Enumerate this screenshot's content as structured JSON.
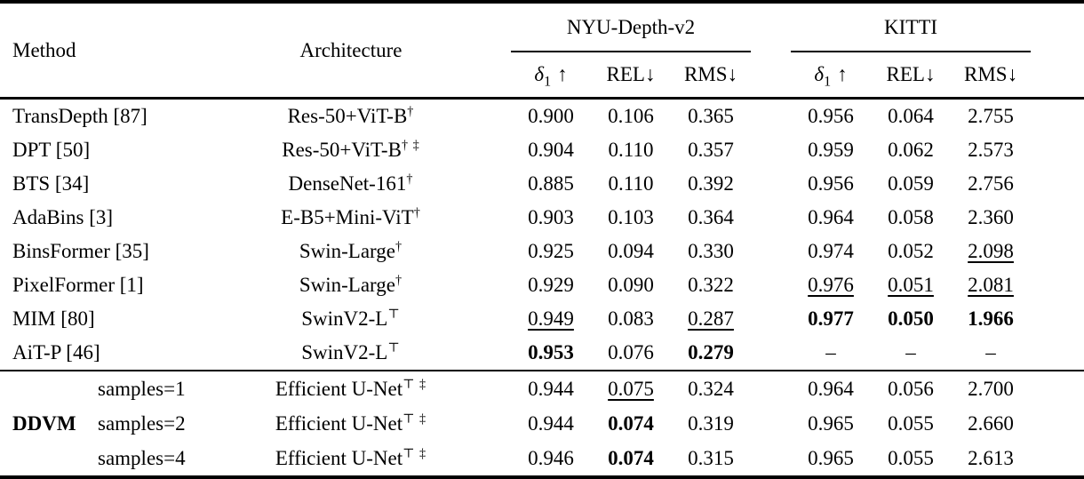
{
  "colors": {
    "text": "#000000",
    "background": "#ffffff",
    "rule": "#000000"
  },
  "header": {
    "method": "Method",
    "architecture": "Architecture",
    "groups": [
      {
        "label": "NYU-Depth-v2"
      },
      {
        "label": "KITTI"
      }
    ],
    "metric_delta_sym": "δ",
    "metric_delta_sub": "1",
    "metric_delta_arrow": "↑",
    "metric_rel": "REL↓",
    "metric_rms": "RMS↓"
  },
  "rows": [
    {
      "method": "TransDepth [87]",
      "arch": "Res-50+ViT-B",
      "sup": "†",
      "m": [
        {
          "t": "0.900",
          "e": ""
        },
        {
          "t": "0.106",
          "e": ""
        },
        {
          "t": "0.365",
          "e": ""
        },
        {
          "t": "0.956",
          "e": ""
        },
        {
          "t": "0.064",
          "e": ""
        },
        {
          "t": "2.755",
          "e": ""
        }
      ]
    },
    {
      "method": "DPT [50]",
      "arch": "Res-50+ViT-B",
      "sup": "† ‡",
      "m": [
        {
          "t": "0.904",
          "e": ""
        },
        {
          "t": "0.110",
          "e": ""
        },
        {
          "t": "0.357",
          "e": ""
        },
        {
          "t": "0.959",
          "e": ""
        },
        {
          "t": "0.062",
          "e": ""
        },
        {
          "t": "2.573",
          "e": ""
        }
      ]
    },
    {
      "method": "BTS [34]",
      "arch": "DenseNet-161",
      "sup": "†",
      "m": [
        {
          "t": "0.885",
          "e": ""
        },
        {
          "t": "0.110",
          "e": ""
        },
        {
          "t": "0.392",
          "e": ""
        },
        {
          "t": "0.956",
          "e": ""
        },
        {
          "t": "0.059",
          "e": ""
        },
        {
          "t": "2.756",
          "e": ""
        }
      ]
    },
    {
      "method": "AdaBins [3]",
      "arch": "E-B5+Mini-ViT",
      "sup": "†",
      "m": [
        {
          "t": "0.903",
          "e": ""
        },
        {
          "t": "0.103",
          "e": ""
        },
        {
          "t": "0.364",
          "e": ""
        },
        {
          "t": "0.964",
          "e": ""
        },
        {
          "t": "0.058",
          "e": ""
        },
        {
          "t": "2.360",
          "e": ""
        }
      ]
    },
    {
      "method": "BinsFormer [35]",
      "arch": "Swin-Large",
      "sup": "†",
      "m": [
        {
          "t": "0.925",
          "e": ""
        },
        {
          "t": "0.094",
          "e": ""
        },
        {
          "t": "0.330",
          "e": ""
        },
        {
          "t": "0.974",
          "e": ""
        },
        {
          "t": "0.052",
          "e": ""
        },
        {
          "t": "2.098",
          "e": "u"
        }
      ]
    },
    {
      "method": "PixelFormer [1]",
      "arch": "Swin-Large",
      "sup": "†",
      "m": [
        {
          "t": "0.929",
          "e": ""
        },
        {
          "t": "0.090",
          "e": ""
        },
        {
          "t": "0.322",
          "e": ""
        },
        {
          "t": "0.976",
          "e": "u"
        },
        {
          "t": "0.051",
          "e": "u"
        },
        {
          "t": "2.081",
          "e": "u"
        }
      ]
    },
    {
      "method": "MIM [80]",
      "arch": "SwinV2-L",
      "sup": "⊤",
      "m": [
        {
          "t": "0.949",
          "e": "u"
        },
        {
          "t": "0.083",
          "e": ""
        },
        {
          "t": "0.287",
          "e": "u"
        },
        {
          "t": "0.977",
          "e": "b"
        },
        {
          "t": "0.050",
          "e": "b"
        },
        {
          "t": "1.966",
          "e": "b"
        }
      ]
    },
    {
      "method": "AiT-P [46]",
      "arch": "SwinV2-L",
      "sup": "⊤",
      "m": [
        {
          "t": "0.953",
          "e": "b"
        },
        {
          "t": "0.076",
          "e": ""
        },
        {
          "t": "0.279",
          "e": "b"
        },
        {
          "t": "–",
          "e": ""
        },
        {
          "t": "–",
          "e": ""
        },
        {
          "t": "–",
          "e": ""
        }
      ]
    }
  ],
  "ddvm": {
    "label": "DDVM",
    "rows": [
      {
        "samples": "samples=1",
        "arch": "Efficient U-Net",
        "sup": "⊤ ‡",
        "m": [
          {
            "t": "0.944",
            "e": ""
          },
          {
            "t": "0.075",
            "e": "u"
          },
          {
            "t": "0.324",
            "e": ""
          },
          {
            "t": "0.964",
            "e": ""
          },
          {
            "t": "0.056",
            "e": ""
          },
          {
            "t": "2.700",
            "e": ""
          }
        ]
      },
      {
        "samples": "samples=2",
        "arch": "Efficient U-Net",
        "sup": "⊤ ‡",
        "m": [
          {
            "t": "0.944",
            "e": ""
          },
          {
            "t": "0.074",
            "e": "b"
          },
          {
            "t": "0.319",
            "e": ""
          },
          {
            "t": "0.965",
            "e": ""
          },
          {
            "t": "0.055",
            "e": ""
          },
          {
            "t": "2.660",
            "e": ""
          }
        ]
      },
      {
        "samples": "samples=4",
        "arch": "Efficient U-Net",
        "sup": "⊤ ‡",
        "m": [
          {
            "t": "0.946",
            "e": ""
          },
          {
            "t": "0.074",
            "e": "b"
          },
          {
            "t": "0.315",
            "e": ""
          },
          {
            "t": "0.965",
            "e": ""
          },
          {
            "t": "0.055",
            "e": ""
          },
          {
            "t": "2.613",
            "e": ""
          }
        ]
      }
    ]
  }
}
